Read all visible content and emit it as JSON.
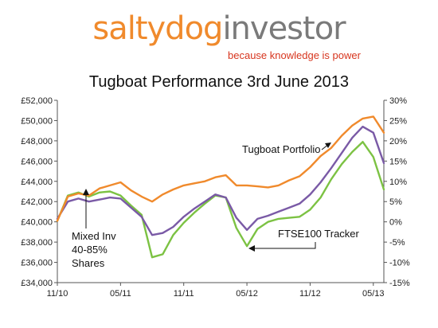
{
  "brand": {
    "logo_part1": "saltydog",
    "logo_part2": "investor",
    "tagline": "because knowledge is power",
    "color_primary": "#f08a2c",
    "color_secondary": "#7a7a7a",
    "color_tagline": "#d7351e"
  },
  "chart_data": {
    "type": "line",
    "title": "Tugboat Performance  3rd June 2013",
    "xlabel": "",
    "ylabel": "",
    "x_ticks": [
      "11/10",
      "05/11",
      "11/11",
      "05/12",
      "11/12",
      "05/13"
    ],
    "y_left_ticks": [
      "£52,000",
      "£50,000",
      "£48,000",
      "£46,000",
      "£44,000",
      "£42,000",
      "£40,000",
      "£38,000",
      "£36,000",
      "£34,000"
    ],
    "y_right_ticks": [
      "30%",
      "25%",
      "20%",
      "15%",
      "10%",
      "5%",
      "0%",
      "-5%",
      "-10%",
      "-15%"
    ],
    "y_left_range": [
      34000,
      52000
    ],
    "y_right_range": [
      -15,
      30
    ],
    "x_range": [
      "2010-11",
      "2013-06"
    ],
    "grid": false,
    "series": [
      {
        "name": "Tugboat Portfolio",
        "color": "#f08a2c",
        "x": [
          "2010-11",
          "2010-12",
          "2011-01",
          "2011-02",
          "2011-03",
          "2011-04",
          "2011-05",
          "2011-06",
          "2011-07",
          "2011-08",
          "2011-09",
          "2011-10",
          "2011-11",
          "2011-12",
          "2012-01",
          "2012-02",
          "2012-03",
          "2012-04",
          "2012-05",
          "2012-06",
          "2012-07",
          "2012-08",
          "2012-09",
          "2012-10",
          "2012-11",
          "2012-12",
          "2013-01",
          "2013-02",
          "2013-03",
          "2013-04",
          "2013-05",
          "2013-06"
        ],
        "values": [
          40100,
          42500,
          42800,
          42600,
          43300,
          43600,
          43900,
          43100,
          42500,
          42000,
          42700,
          43200,
          43600,
          43800,
          44000,
          44400,
          44600,
          43600,
          43600,
          43500,
          43400,
          43600,
          44100,
          44500,
          45400,
          46500,
          47300,
          48500,
          49500,
          50200,
          50400,
          48800
        ]
      },
      {
        "name": "Mixed Inv 40-85% Shares",
        "color": "#7a5aa6",
        "x": [
          "2010-11",
          "2010-12",
          "2011-01",
          "2011-02",
          "2011-03",
          "2011-04",
          "2011-05",
          "2011-06",
          "2011-07",
          "2011-08",
          "2011-09",
          "2011-10",
          "2011-11",
          "2011-12",
          "2012-01",
          "2012-02",
          "2012-03",
          "2012-04",
          "2012-05",
          "2012-06",
          "2012-07",
          "2012-08",
          "2012-09",
          "2012-10",
          "2012-11",
          "2012-12",
          "2013-01",
          "2013-02",
          "2013-03",
          "2013-04",
          "2013-05",
          "2013-06"
        ],
        "values": [
          40300,
          42000,
          42300,
          42000,
          42200,
          42400,
          42300,
          41400,
          40500,
          38700,
          38900,
          39500,
          40500,
          41300,
          42000,
          42700,
          42400,
          40400,
          39200,
          40300,
          40600,
          41000,
          41400,
          41800,
          42700,
          43900,
          45300,
          46800,
          48300,
          49400,
          48800,
          45800
        ]
      },
      {
        "name": "FTSE100 Tracker",
        "color": "#7cc243",
        "x": [
          "2010-11",
          "2010-12",
          "2011-01",
          "2011-02",
          "2011-03",
          "2011-04",
          "2011-05",
          "2011-06",
          "2011-07",
          "2011-08",
          "2011-09",
          "2011-10",
          "2011-11",
          "2011-12",
          "2012-01",
          "2012-02",
          "2012-03",
          "2012-04",
          "2012-05",
          "2012-06",
          "2012-07",
          "2012-08",
          "2012-09",
          "2012-10",
          "2012-11",
          "2012-12",
          "2013-01",
          "2013-02",
          "2013-03",
          "2013-04",
          "2013-05",
          "2013-06"
        ],
        "values": [
          40100,
          42600,
          42900,
          42500,
          42900,
          43000,
          42600,
          41600,
          40700,
          36500,
          36800,
          38700,
          39900,
          40900,
          41800,
          42600,
          42400,
          39400,
          37600,
          39300,
          40000,
          40300,
          40400,
          40500,
          41200,
          42400,
          44200,
          45700,
          46900,
          47900,
          46400,
          43200
        ]
      }
    ],
    "annotations": [
      {
        "text": "Tugboat Portfolio",
        "points_to": "Tugboat Portfolio"
      },
      {
        "text": "FTSE100 Tracker",
        "points_to": "FTSE100 Tracker"
      },
      {
        "lines": [
          "Mixed Inv",
          "40-85%",
          "Shares"
        ],
        "points_to": "Mixed Inv 40-85% Shares"
      }
    ]
  }
}
